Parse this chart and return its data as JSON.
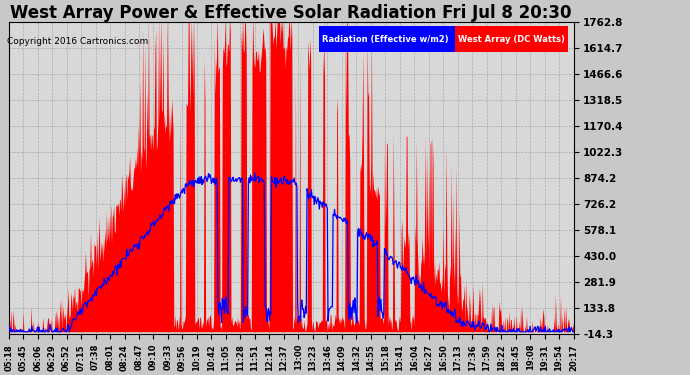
{
  "title": "West Array Power & Effective Solar Radiation Fri Jul 8 20:30",
  "copyright": "Copyright 2016 Cartronics.com",
  "legend_labels": [
    "Radiation (Effective w/m2)",
    "West Array (DC Watts)"
  ],
  "legend_colors": [
    "blue",
    "red"
  ],
  "yticks": [
    -14.3,
    133.8,
    281.9,
    430.0,
    578.1,
    726.2,
    874.2,
    1022.3,
    1170.4,
    1318.5,
    1466.6,
    1614.7,
    1762.8
  ],
  "ymin": -14.3,
  "ymax": 1762.8,
  "bg_color": "#c8c8c8",
  "plot_bg_color": "#d8d8d8",
  "title_fontsize": 12,
  "xtick_labels": [
    "05:18",
    "05:45",
    "06:06",
    "06:29",
    "06:52",
    "07:15",
    "07:38",
    "08:01",
    "08:24",
    "08:47",
    "09:10",
    "09:33",
    "09:56",
    "10:19",
    "10:42",
    "11:05",
    "11:28",
    "11:51",
    "12:14",
    "12:37",
    "13:00",
    "13:23",
    "13:46",
    "14:09",
    "14:32",
    "14:55",
    "15:18",
    "15:41",
    "16:04",
    "16:27",
    "16:50",
    "17:13",
    "17:36",
    "17:59",
    "18:22",
    "18:45",
    "19:08",
    "19:31",
    "19:54",
    "20:17"
  ]
}
